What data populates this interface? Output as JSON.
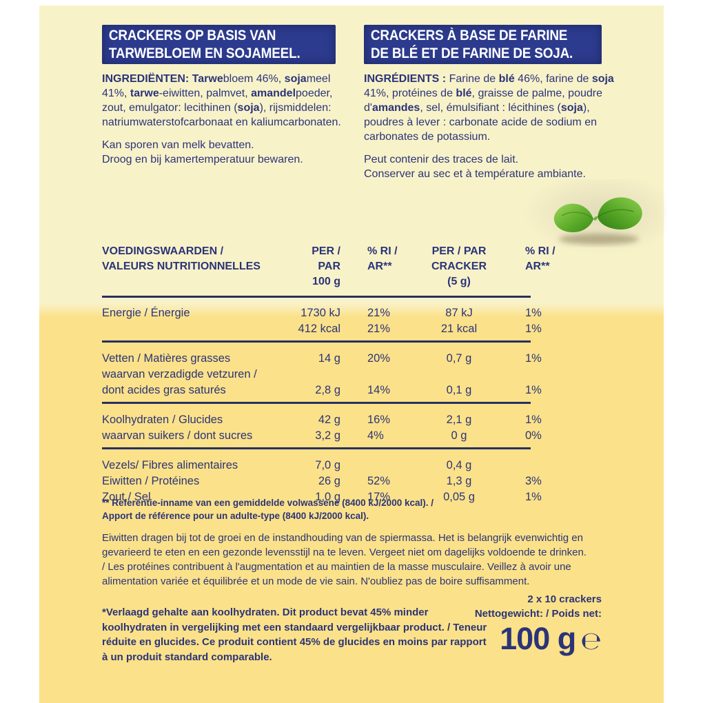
{
  "colors": {
    "background_top": "#f8f2c9",
    "background_bottom": "#fbe189",
    "stamp_blue": "#2c3b8d",
    "text_navy": "#2b3478"
  },
  "titles": {
    "dutch": "CRACKERS OP BASIS VAN\nTARWEBLOEM EN SOJAMEEL.",
    "french": "CRACKERS À BASE DE FARINE\nDE BLÉ ET DE FARINE DE SOJA."
  },
  "ingredients": {
    "dutch": {
      "text": "**INGREDIËNTEN: Tarwe**bloem 46%, **soja**meel 41%, **tarwe**-eiwitten, palmvet, **amandel**poeder, zout, emulgator: lecithinen (**soja**), rijsmiddelen: natriumwaterstofcarbonaat en kaliumcarbonaten.",
      "notes": "Kan sporen van melk bevatten.\nDroog en bij kamertemperatuur bewaren."
    },
    "french": {
      "text": "**INGRÉDIENTS :** Farine de **blé** 46%, farine de **soja** 41%, protéines de **blé**, graisse de palme, poudre d'**amandes**, sel, émulsifiant : lécithines (**soja**), poudres à lever : carbonate acide de sodium en carbonates de potassium.",
      "notes": "Peut contenir des traces de lait.\nConserver au sec et à température ambiante."
    }
  },
  "leaf": {
    "name": "soy-sprout-leaves",
    "green_light": "#8fce4e",
    "green_dark": "#2f7d15"
  },
  "nutrition": {
    "header": {
      "col_label": "VOEDINGSWAARDEN /\nVALEURS NUTRITIONNELLES",
      "col_per100": "PER / PAR\n100 g",
      "col_ri1": "% RI /\nAR**",
      "col_percracker": "PER / PAR\nCRACKER (5 g)",
      "col_ri2": "% RI /\nAR**"
    },
    "rows": [
      {
        "label": "Energie / Énergie",
        "per100": "1730 kJ",
        "ri100": "21%",
        "cracker": "87 kJ",
        "ri_cracker": "1%"
      },
      {
        "label": "",
        "per100": "412 kcal",
        "ri100": "21%",
        "cracker": "21 kcal",
        "ri_cracker": "1%",
        "rule_after": true
      },
      {
        "label": "Vetten / Matières grasses",
        "per100": "14 g",
        "ri100": "20%",
        "cracker": "0,7 g",
        "ri_cracker": "1%"
      },
      {
        "label": "waarvan verzadigde vetzuren /",
        "per100": "",
        "ri100": "",
        "cracker": "",
        "ri_cracker": ""
      },
      {
        "label": "dont acides gras saturés",
        "per100": "2,8 g",
        "ri100": "14%",
        "cracker": "0,1 g",
        "ri_cracker": "1%",
        "rule_after": true
      },
      {
        "label": "Koolhydraten / Glucides",
        "per100": "42 g",
        "ri100": "16%",
        "cracker": "2,1 g",
        "ri_cracker": "1%"
      },
      {
        "label": "waarvan suikers / dont sucres",
        "per100": "3,2 g",
        "ri100": "4%",
        "cracker": "0 g",
        "ri_cracker": "0%",
        "rule_after": true
      },
      {
        "label": "Vezels/ Fibres alimentaires",
        "per100": "7,0 g",
        "ri100": "",
        "cracker": "0,4 g",
        "ri_cracker": ""
      },
      {
        "label": "Eiwitten / Protéines",
        "per100": "26 g",
        "ri100": "52%",
        "cracker": "1,3 g",
        "ri_cracker": "3%"
      },
      {
        "label": "Zout / Sel",
        "per100": "1,0 g",
        "ri100": "17%",
        "cracker": "0,05 g",
        "ri_cracker": "1%"
      }
    ],
    "footnote": "** Referentie-inname van een gemiddelde volwassene (8400 kJ/2000 kcal). /\nApport de référence pour un adulte-type (8400 kJ/2000 kcal)."
  },
  "protein_note": "Eiwitten dragen bij tot de groei en de instandhouding van de spiermassa. Het is belangrijk evenwichtig en gevarieerd te eten en een gezonde levensstijl na te leven. Vergeet niet om dagelijks voldoende te drinken.  / Les protéines contribuent à l'augmentation et au maintien de la masse musculaire. Veillez à avoir une alimentation variée et équilibrée et un mode de vie sain. N'oubliez pas de boire suffisamment.",
  "star_note": "*Verlaagd gehalte aan koolhydraten. Dit product bevat 45% minder koolhydraten in vergelijking met een standaard vergelijkbaar product. / Teneur réduite en glucides. Ce produit contient 45% de glucides en moins par rapport à un produit standard comparable.",
  "net_weight": {
    "count": "2 x 10 crackers",
    "label": "Nettogewicht: / Poids net:",
    "value": "100 g",
    "estimated_sign": "℮"
  }
}
